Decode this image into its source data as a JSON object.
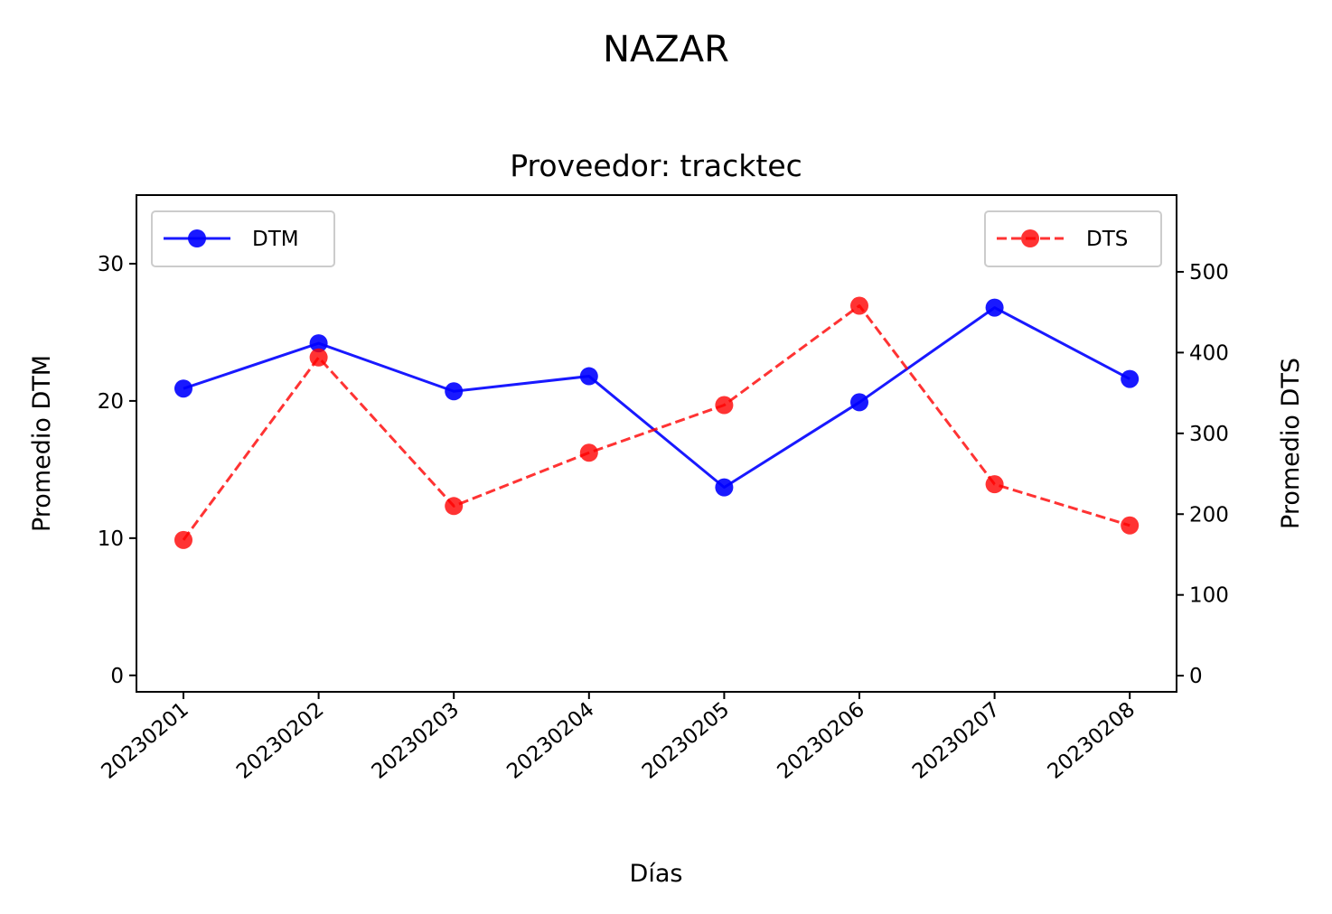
{
  "suptitle": "NAZAR",
  "chart_data": {
    "type": "line",
    "title": "Proveedor: tracktec",
    "xlabel": "Días",
    "ylabel": "Promedio DTM",
    "ylabel_right": "Promedio DTS",
    "categories": [
      "20230201",
      "20230202",
      "20230203",
      "20230204",
      "20230205",
      "20230206",
      "20230207",
      "20230208"
    ],
    "ylim": [
      -1.2,
      35
    ],
    "ylim_right": [
      -20,
      595
    ],
    "yticks": [
      0,
      10,
      20,
      30
    ],
    "yticks_right": [
      0,
      100,
      200,
      300,
      400,
      500
    ],
    "grid": false,
    "series": [
      {
        "name": "DTM",
        "axis": "left",
        "color": "#0000ff",
        "style": "solid",
        "marker": "circle",
        "legend": "top-left",
        "values": [
          20.9,
          24.2,
          20.7,
          21.8,
          13.7,
          19.9,
          26.8,
          21.6
        ]
      },
      {
        "name": "DTS",
        "axis": "right",
        "color": "#ff0000",
        "style": "dashed",
        "marker": "circle",
        "legend": "top-right",
        "values": [
          168,
          394,
          210,
          276,
          335,
          458,
          237,
          186
        ]
      }
    ]
  }
}
